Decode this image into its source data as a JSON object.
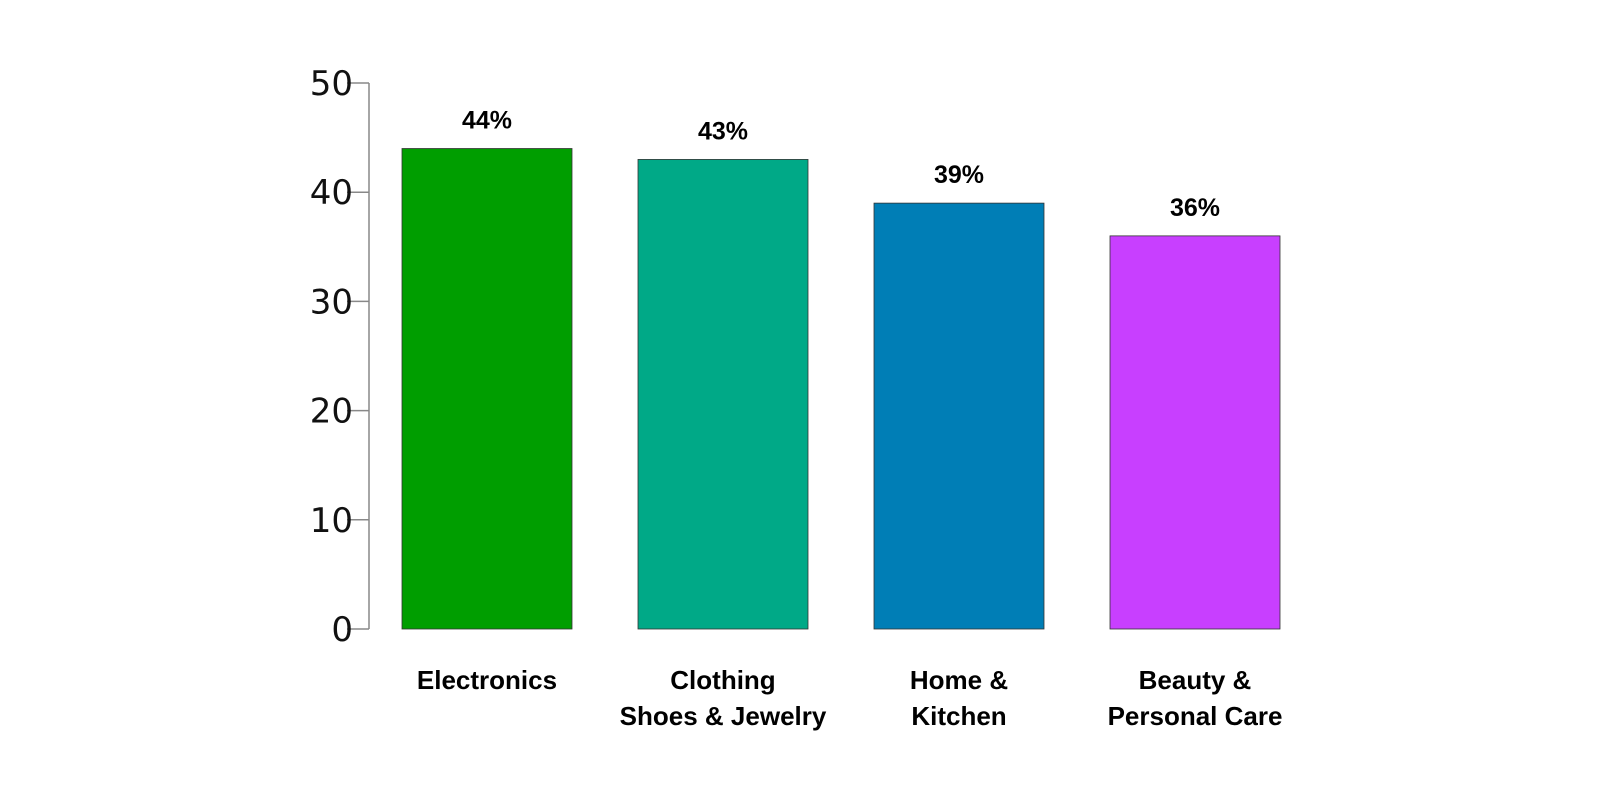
{
  "chart_data": {
    "type": "bar",
    "categories": [
      [
        "Electronics"
      ],
      [
        "Clothing",
        "Shoes & Jewelry"
      ],
      [
        "Home &",
        "Kitchen"
      ],
      [
        "Beauty &",
        "Personal Care"
      ]
    ],
    "values": [
      44,
      43,
      39,
      36
    ],
    "data_labels": [
      "44%",
      "43%",
      "39%",
      "36%"
    ],
    "colors": [
      "#009E00",
      "#00A987",
      "#007EB6",
      "#C83FFF"
    ],
    "ylim": [
      0,
      50
    ],
    "yticks": [
      0,
      10,
      20,
      30,
      40,
      50
    ],
    "grid": false,
    "legend": false
  }
}
